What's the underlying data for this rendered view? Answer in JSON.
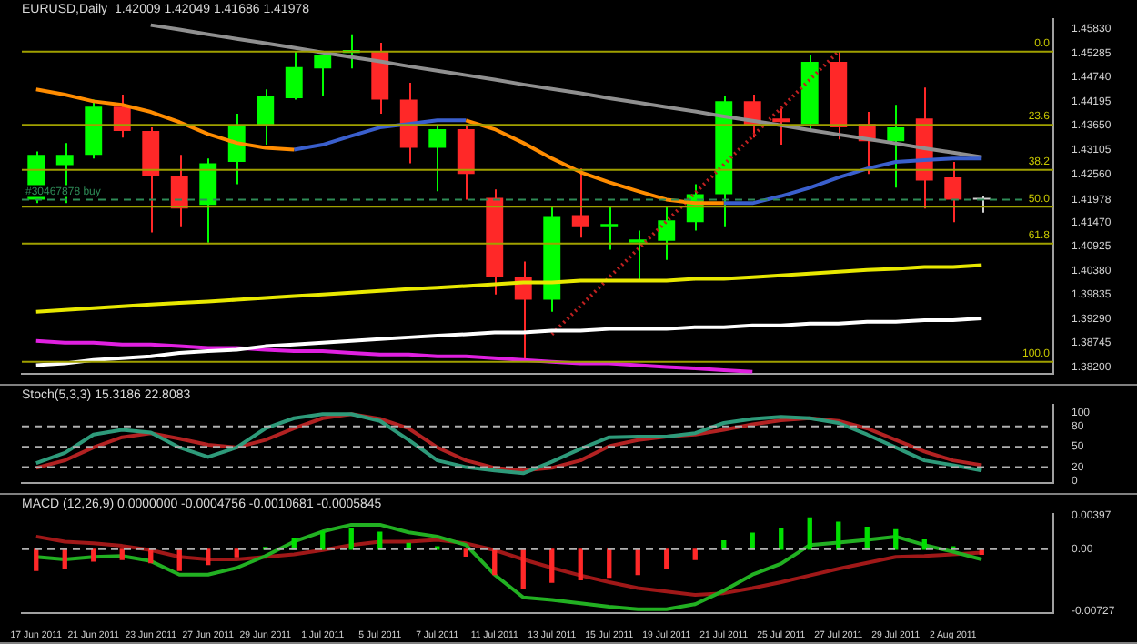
{
  "chart_data": [
    {
      "type": "candlestick",
      "title": "EURUSD,Daily  1.42009 1.42049 1.41686 1.41978",
      "categories": [
        null,
        null,
        null,
        null,
        null,
        null,
        null,
        null,
        null,
        null,
        null,
        null,
        null,
        null,
        null,
        null,
        null,
        null,
        null,
        null,
        null,
        null,
        null,
        null,
        null,
        null,
        null,
        null,
        null,
        null,
        null,
        null,
        null,
        null
      ],
      "ohlc": [
        [
          1.4198,
          1.4307,
          1.419,
          1.4299
        ],
        [
          1.4276,
          1.4326,
          1.419,
          1.4299
        ],
        [
          1.4299,
          1.4424,
          1.4291,
          1.4408
        ],
        [
          1.4408,
          1.4435,
          1.4338,
          1.4353
        ],
        [
          1.4353,
          1.4361,
          1.4124,
          1.4252
        ],
        [
          1.4252,
          1.4299,
          1.4136,
          1.4178
        ],
        [
          1.4186,
          1.4291,
          1.4101,
          1.428
        ],
        [
          1.4283,
          1.4392,
          1.4233,
          1.4365
        ],
        [
          1.4365,
          1.4447,
          1.4322,
          1.4431
        ],
        [
          1.4427,
          1.4532,
          1.4424,
          1.4497
        ],
        [
          1.4494,
          1.4525,
          1.4431,
          1.4525
        ],
        [
          1.4529,
          1.4571,
          1.4494,
          1.4536
        ],
        [
          1.4532,
          1.4552,
          1.4392,
          1.4424
        ],
        [
          1.4424,
          1.4462,
          1.428,
          1.4315
        ],
        [
          1.4315,
          1.4365,
          1.4217,
          1.4357
        ],
        [
          1.4357,
          1.4365,
          1.4198,
          1.4256
        ],
        [
          1.4202,
          1.4221,
          1.3984,
          1.4023
        ],
        [
          1.4023,
          1.4058,
          1.3832,
          1.3972
        ],
        [
          1.3972,
          1.4182,
          1.3945,
          1.4159
        ],
        [
          1.4163,
          1.4268,
          1.4112,
          1.4136
        ],
        [
          1.4136,
          1.4182,
          1.4085,
          1.4143
        ],
        [
          1.4101,
          1.4128,
          1.4015,
          1.4108
        ],
        [
          1.4105,
          1.4182,
          1.4062,
          1.4151
        ],
        [
          1.4147,
          1.4233,
          1.4128,
          1.421
        ],
        [
          1.421,
          1.4431,
          1.4136,
          1.442
        ],
        [
          1.442,
          1.4435,
          1.4338,
          1.4365
        ],
        [
          1.4381,
          1.4404,
          1.4322,
          1.4373
        ],
        [
          1.4369,
          1.4525,
          1.4353,
          1.4509
        ],
        [
          1.4509,
          1.4532,
          1.4334,
          1.4361
        ],
        [
          1.4369,
          1.4396,
          1.4256,
          1.433
        ],
        [
          1.433,
          1.4412,
          1.4225,
          1.4361
        ],
        [
          1.4381,
          1.4451,
          1.4178,
          1.4241
        ],
        [
          1.4248,
          1.4283,
          1.4147,
          1.4198
        ],
        [
          1.42009,
          1.42049,
          1.41686,
          1.41978
        ]
      ],
      "colors": [
        "#00ff00",
        "#00ff00",
        "#00ff00",
        "#ff2828",
        "#ff2828",
        "#ff2828",
        "#00ff00",
        "#00ff00",
        "#00ff00",
        "#00ff00",
        "#00ff00",
        "#00ff00",
        "#ff2828",
        "#ff2828",
        "#00ff00",
        "#ff2828",
        "#ff2828",
        "#ff2828",
        "#00ff00",
        "#ff2828",
        "#00ff00",
        "#00ff00",
        "#00ff00",
        "#00ff00",
        "#00ff00",
        "#ff2828",
        "#ff2828",
        "#00ff00",
        "#ff2828",
        "#ff2828",
        "#00ff00",
        "#ff2828",
        "#ff2828",
        "#d0d0d0"
      ],
      "series": [
        {
          "type": "line",
          "color": "#ff8c00",
          "values": [
            1.4447,
            1.4435,
            1.442,
            1.4412,
            1.4396,
            1.4373,
            1.4346,
            1.4326,
            1.4315,
            1.4311,
            null,
            null,
            null,
            null,
            null,
            1.4377,
            1.4357,
            1.4326,
            1.4291,
            1.426,
            1.4237,
            1.4217,
            1.4198,
            1.419,
            1.419,
            null,
            null,
            null,
            null,
            null,
            null,
            null,
            null,
            null
          ]
        },
        {
          "type": "line",
          "color": "#3a5fcd",
          "values": [
            null,
            null,
            null,
            null,
            null,
            null,
            null,
            null,
            null,
            1.4311,
            1.4322,
            1.4342,
            1.4361,
            1.4369,
            1.4377,
            1.4377,
            null,
            null,
            null,
            null,
            null,
            null,
            null,
            null,
            1.419,
            1.419,
            1.4206,
            1.4225,
            1.4248,
            1.4268,
            1.4283,
            1.4287,
            1.4291,
            1.4291
          ]
        },
        {
          "type": "line",
          "color": "#e8e800",
          "values": [
            1.3945,
            1.3949,
            1.3953,
            1.3957,
            1.3961,
            1.3965,
            1.3968,
            1.3972,
            1.3976,
            1.398,
            1.3984,
            1.3988,
            1.3992,
            1.3996,
            1.3999,
            1.4003,
            1.4007,
            1.4011,
            1.4011,
            1.4015,
            1.4015,
            1.4015,
            1.4015,
            1.4019,
            1.4019,
            1.4023,
            1.4027,
            1.4031,
            1.4035,
            1.4039,
            1.4042,
            1.4046,
            1.4046,
            1.405
          ]
        },
        {
          "type": "line",
          "color": "#ffffff",
          "values": [
            1.3824,
            1.3828,
            1.3836,
            1.384,
            1.3844,
            1.3852,
            1.3856,
            1.3859,
            1.3867,
            1.3871,
            1.3875,
            1.3879,
            1.3883,
            1.3887,
            1.3891,
            1.3894,
            1.3898,
            1.3898,
            1.3902,
            1.3902,
            1.3906,
            1.3906,
            1.3906,
            1.391,
            1.391,
            1.3914,
            1.3914,
            1.3918,
            1.3918,
            1.3922,
            1.3922,
            1.3926,
            1.3926,
            1.393
          ]
        },
        {
          "type": "line",
          "color": "#e020e0",
          "values": [
            1.3879,
            1.3875,
            1.3875,
            1.3871,
            1.3871,
            1.3867,
            1.3863,
            1.3863,
            1.3859,
            1.3856,
            1.3856,
            1.3852,
            1.3848,
            1.3848,
            1.3844,
            1.3844,
            1.384,
            1.3836,
            1.3832,
            1.3828,
            1.3828,
            1.3824,
            1.382,
            1.3817,
            1.3813,
            1.3809,
            null,
            null,
            null,
            null,
            null,
            null,
            null,
            null
          ]
        },
        {
          "type": "line",
          "color": "#909090",
          "values": [
            null,
            null,
            null,
            null,
            1.4592,
            1.4582,
            1.4571,
            1.4561,
            1.4551,
            1.4541,
            1.453,
            1.452,
            1.451,
            1.4499,
            1.4489,
            1.4479,
            1.4469,
            1.4458,
            1.4448,
            1.4438,
            1.4427,
            1.4417,
            1.4407,
            1.4397,
            1.4386,
            1.4376,
            1.4366,
            1.4355,
            1.4345,
            1.4335,
            1.4325,
            1.4314,
            1.4304,
            1.4294
          ]
        },
        {
          "type": "line",
          "color": "#c02020",
          "line_style": "dotted",
          "values": [
            null,
            null,
            null,
            null,
            null,
            null,
            null,
            null,
            null,
            null,
            null,
            null,
            null,
            null,
            null,
            null,
            null,
            null,
            1.3894,
            1.3958,
            1.4022,
            1.4086,
            1.4149,
            1.4213,
            1.4277,
            1.4341,
            1.4405,
            1.4469,
            1.4532,
            null,
            null,
            null,
            null,
            null
          ]
        }
      ],
      "ref_lines": [
        {
          "axis": "y",
          "value": 1.4532,
          "color": "#a0a000",
          "line_style": "solid"
        },
        {
          "axis": "y",
          "value": 1.4367,
          "color": "#a0a000",
          "line_style": "solid"
        },
        {
          "axis": "y",
          "value": 1.4265,
          "color": "#a0a000",
          "line_style": "solid"
        },
        {
          "axis": "y",
          "value": 1.4182,
          "color": "#a0a000",
          "line_style": "solid"
        },
        {
          "axis": "y",
          "value": 1.4099,
          "color": "#a0a000",
          "line_style": "solid"
        },
        {
          "axis": "y",
          "value": 1.3832,
          "color": "#a0a000",
          "line_style": "solid"
        },
        {
          "axis": "y",
          "value": 1.41978,
          "label": "#30467878 buy",
          "color": "#2e8b57",
          "line_style": "dashed"
        }
      ],
      "annotations": [
        {
          "text": "0.0",
          "y": 1.4532
        },
        {
          "text": "23.6",
          "y": 1.4367
        },
        {
          "text": "38.2",
          "y": 1.4265
        },
        {
          "text": "50.0",
          "y": 1.4182
        },
        {
          "text": "61.8",
          "y": 1.4099
        },
        {
          "text": "100.0",
          "y": 1.3832
        }
      ],
      "ylim": [
        1.3805,
        1.4606
      ],
      "yticks": [
        {
          "value": 1.4583,
          "label": "1.45830"
        },
        {
          "value": 1.45285,
          "label": "1.45285"
        },
        {
          "value": 1.4474,
          "label": "1.44740"
        },
        {
          "value": 1.44195,
          "label": "1.44195"
        },
        {
          "value": 1.4365,
          "label": "1.43650"
        },
        {
          "value": 1.43105,
          "label": "1.43105"
        },
        {
          "value": 1.4256,
          "label": "1.42560"
        },
        {
          "value": 1.41978,
          "label": "1.41978"
        },
        {
          "value": 1.4147,
          "label": "1.41470"
        },
        {
          "value": 1.40925,
          "label": "1.40925"
        },
        {
          "value": 1.4038,
          "label": "1.40380"
        },
        {
          "value": 1.39835,
          "label": "1.39835"
        },
        {
          "value": 1.3929,
          "label": "1.39290"
        },
        {
          "value": 1.38745,
          "label": "1.38745"
        },
        {
          "value": 1.382,
          "label": "1.38200"
        }
      ],
      "tick_labels": "y"
    },
    {
      "type": "line",
      "title": "Stoch(5,3,3) 15.3186 22.8083",
      "categories": [
        null,
        null,
        null,
        null,
        null,
        null,
        null,
        null,
        null,
        null,
        null,
        null,
        null,
        null,
        null,
        null,
        null,
        null,
        null,
        null,
        null,
        null,
        null,
        null,
        null,
        null,
        null,
        null,
        null,
        null,
        null,
        null,
        null,
        null
      ],
      "series": [
        {
          "color": "#2e9a7a",
          "values": [
            26,
            41,
            68,
            75,
            71,
            49,
            35,
            49,
            77,
            92,
            98,
            98,
            88,
            60,
            30,
            20,
            15,
            11,
            28,
            47,
            64,
            65,
            65,
            70,
            85,
            91,
            94,
            92,
            85,
            68,
            49,
            30,
            23,
            15
          ]
        },
        {
          "color": "#b22222",
          "values": [
            19,
            30,
            49,
            64,
            70,
            62,
            53,
            49,
            60,
            77,
            92,
            98,
            91,
            77,
            49,
            30,
            19,
            15,
            19,
            30,
            51,
            60,
            65,
            68,
            75,
            83,
            89,
            92,
            88,
            77,
            60,
            43,
            30,
            23
          ]
        }
      ],
      "ref_lines": [
        {
          "axis": "y",
          "value": 80,
          "color": "#b0b0b0",
          "line_style": "dashed"
        },
        {
          "axis": "y",
          "value": 50,
          "color": "#b0b0b0",
          "line_style": "dashed"
        },
        {
          "axis": "y",
          "value": 20,
          "color": "#b0b0b0",
          "line_style": "dashed"
        }
      ],
      "ylim": [
        -3,
        112
      ],
      "yticks": [
        0,
        20,
        50,
        80,
        100
      ],
      "tick_labels": "y"
    },
    {
      "type": "bar",
      "title": "MACD (12,26,9) 0.0000000 -0.0004756 -0.0010681 -0.0005845",
      "categories": [
        "17 Jun 2011",
        null,
        "21 Jun 2011",
        null,
        "23 Jun 2011",
        null,
        "27 Jun 2011",
        null,
        "29 Jun 2011",
        null,
        "1 Jul 2011",
        null,
        "5 Jul 2011",
        null,
        "7 Jul 2011",
        null,
        "11 Jul 2011",
        null,
        "13 Jul 2011",
        null,
        "15 Jul 2011",
        null,
        "19 Jul 2011",
        null,
        "21 Jul 2011",
        null,
        "25 Jul 2011",
        null,
        "27 Jul 2011",
        null,
        "29 Jul 2011",
        null,
        "2 Aug 2011",
        null
      ],
      "series": [
        {
          "type": "bar",
          "colors": [
            "#ff2828",
            "#ff2828",
            "#ff2828",
            "#ff2828",
            "#ff2828",
            "#ff2828",
            "#ff2828",
            "#ff2828",
            "#00e000",
            "#00e000",
            "#00e000",
            "#00e000",
            "#00e000",
            "#00e000",
            "#00e000",
            "#ff2828",
            "#ff2828",
            "#ff2828",
            "#ff2828",
            "#ff2828",
            "#ff2828",
            "#ff2828",
            "#ff2828",
            "#ff2828",
            "#00e000",
            "#00e000",
            "#00e000",
            "#00e000",
            "#00e000",
            "#00e000",
            "#00e000",
            "#00e000",
            "#00e000",
            "#ff2828"
          ],
          "values": [
            -0.0025,
            -0.0023,
            -0.0014,
            -0.0012,
            -0.0016,
            -0.0025,
            -0.0018,
            -0.0009,
            0.0002,
            0.0013,
            0.0021,
            0.0025,
            0.002,
            0.0007,
            0.0003,
            -0.0008,
            -0.003,
            -0.0046,
            -0.0039,
            -0.0036,
            -0.0033,
            -0.003,
            -0.0022,
            -0.0012,
            0.001,
            0.0019,
            0.0024,
            0.0037,
            0.0032,
            0.0026,
            0.0023,
            0.0011,
            0.0003,
            -0.0006
          ]
        },
        {
          "type": "line",
          "color": "#22b022",
          "values": [
            -0.0009,
            -0.0012,
            -0.0009,
            -0.0008,
            -0.0014,
            -0.003,
            -0.003,
            -0.0022,
            -0.0008,
            0.0009,
            0.0021,
            0.0029,
            0.0029,
            0.002,
            0.0015,
            0.0005,
            -0.003,
            -0.0057,
            -0.006,
            -0.0064,
            -0.0068,
            -0.0071,
            -0.0071,
            -0.0065,
            -0.0049,
            -0.003,
            -0.0017,
            0.0005,
            0.0008,
            0.0011,
            0.0015,
            0.0005,
            -0.0003,
            -0.0012
          ]
        },
        {
          "type": "line",
          "color": "#a01818",
          "values": [
            0.0015,
            0.0009,
            0.0007,
            0.0004,
            -0.0001,
            -0.0009,
            -0.0012,
            -0.0012,
            -0.0009,
            -0.0006,
            -0.0001,
            0.0005,
            0.0009,
            0.0009,
            0.0011,
            0.0007,
            -0.0001,
            -0.0012,
            -0.0022,
            -0.0031,
            -0.0039,
            -0.0046,
            -0.005,
            -0.0054,
            -0.0052,
            -0.0046,
            -0.0039,
            -0.0031,
            -0.0023,
            -0.0016,
            -0.0009,
            -0.0008,
            -0.0006,
            -0.0004
          ]
        }
      ],
      "ref_lines": [
        {
          "axis": "y",
          "value": 0,
          "color": "#b0b0b0",
          "line_style": "dashed"
        }
      ],
      "ylim": [
        -0.0075,
        0.0042
      ],
      "yticks": [
        0.00397,
        {
          "value": 0,
          "label": "0.00"
        },
        -0.00727
      ]
    }
  ]
}
